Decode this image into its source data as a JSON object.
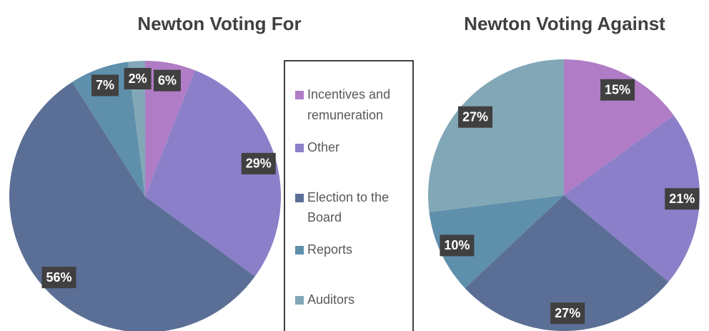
{
  "legend": {
    "labels": [
      "Incentives and remuneration",
      "Other",
      "Election to the Board",
      "Reports",
      "Auditors"
    ],
    "colors": [
      "#b07cc6",
      "#8a7fc8",
      "#5b6f96",
      "#5e8fab",
      "#82a8b8"
    ]
  },
  "chart_data": [
    {
      "type": "pie",
      "title": "Newton Voting For",
      "values": [
        6,
        29,
        56,
        7,
        2
      ],
      "value_labels": [
        "6%",
        "29%",
        "56%",
        "7%",
        "2%"
      ]
    },
    {
      "type": "pie",
      "title": "Newton Voting Against",
      "values": [
        15,
        21,
        27,
        10,
        27
      ],
      "value_labels": [
        "15%",
        "21%",
        "27%",
        "10%",
        "27%"
      ]
    }
  ]
}
